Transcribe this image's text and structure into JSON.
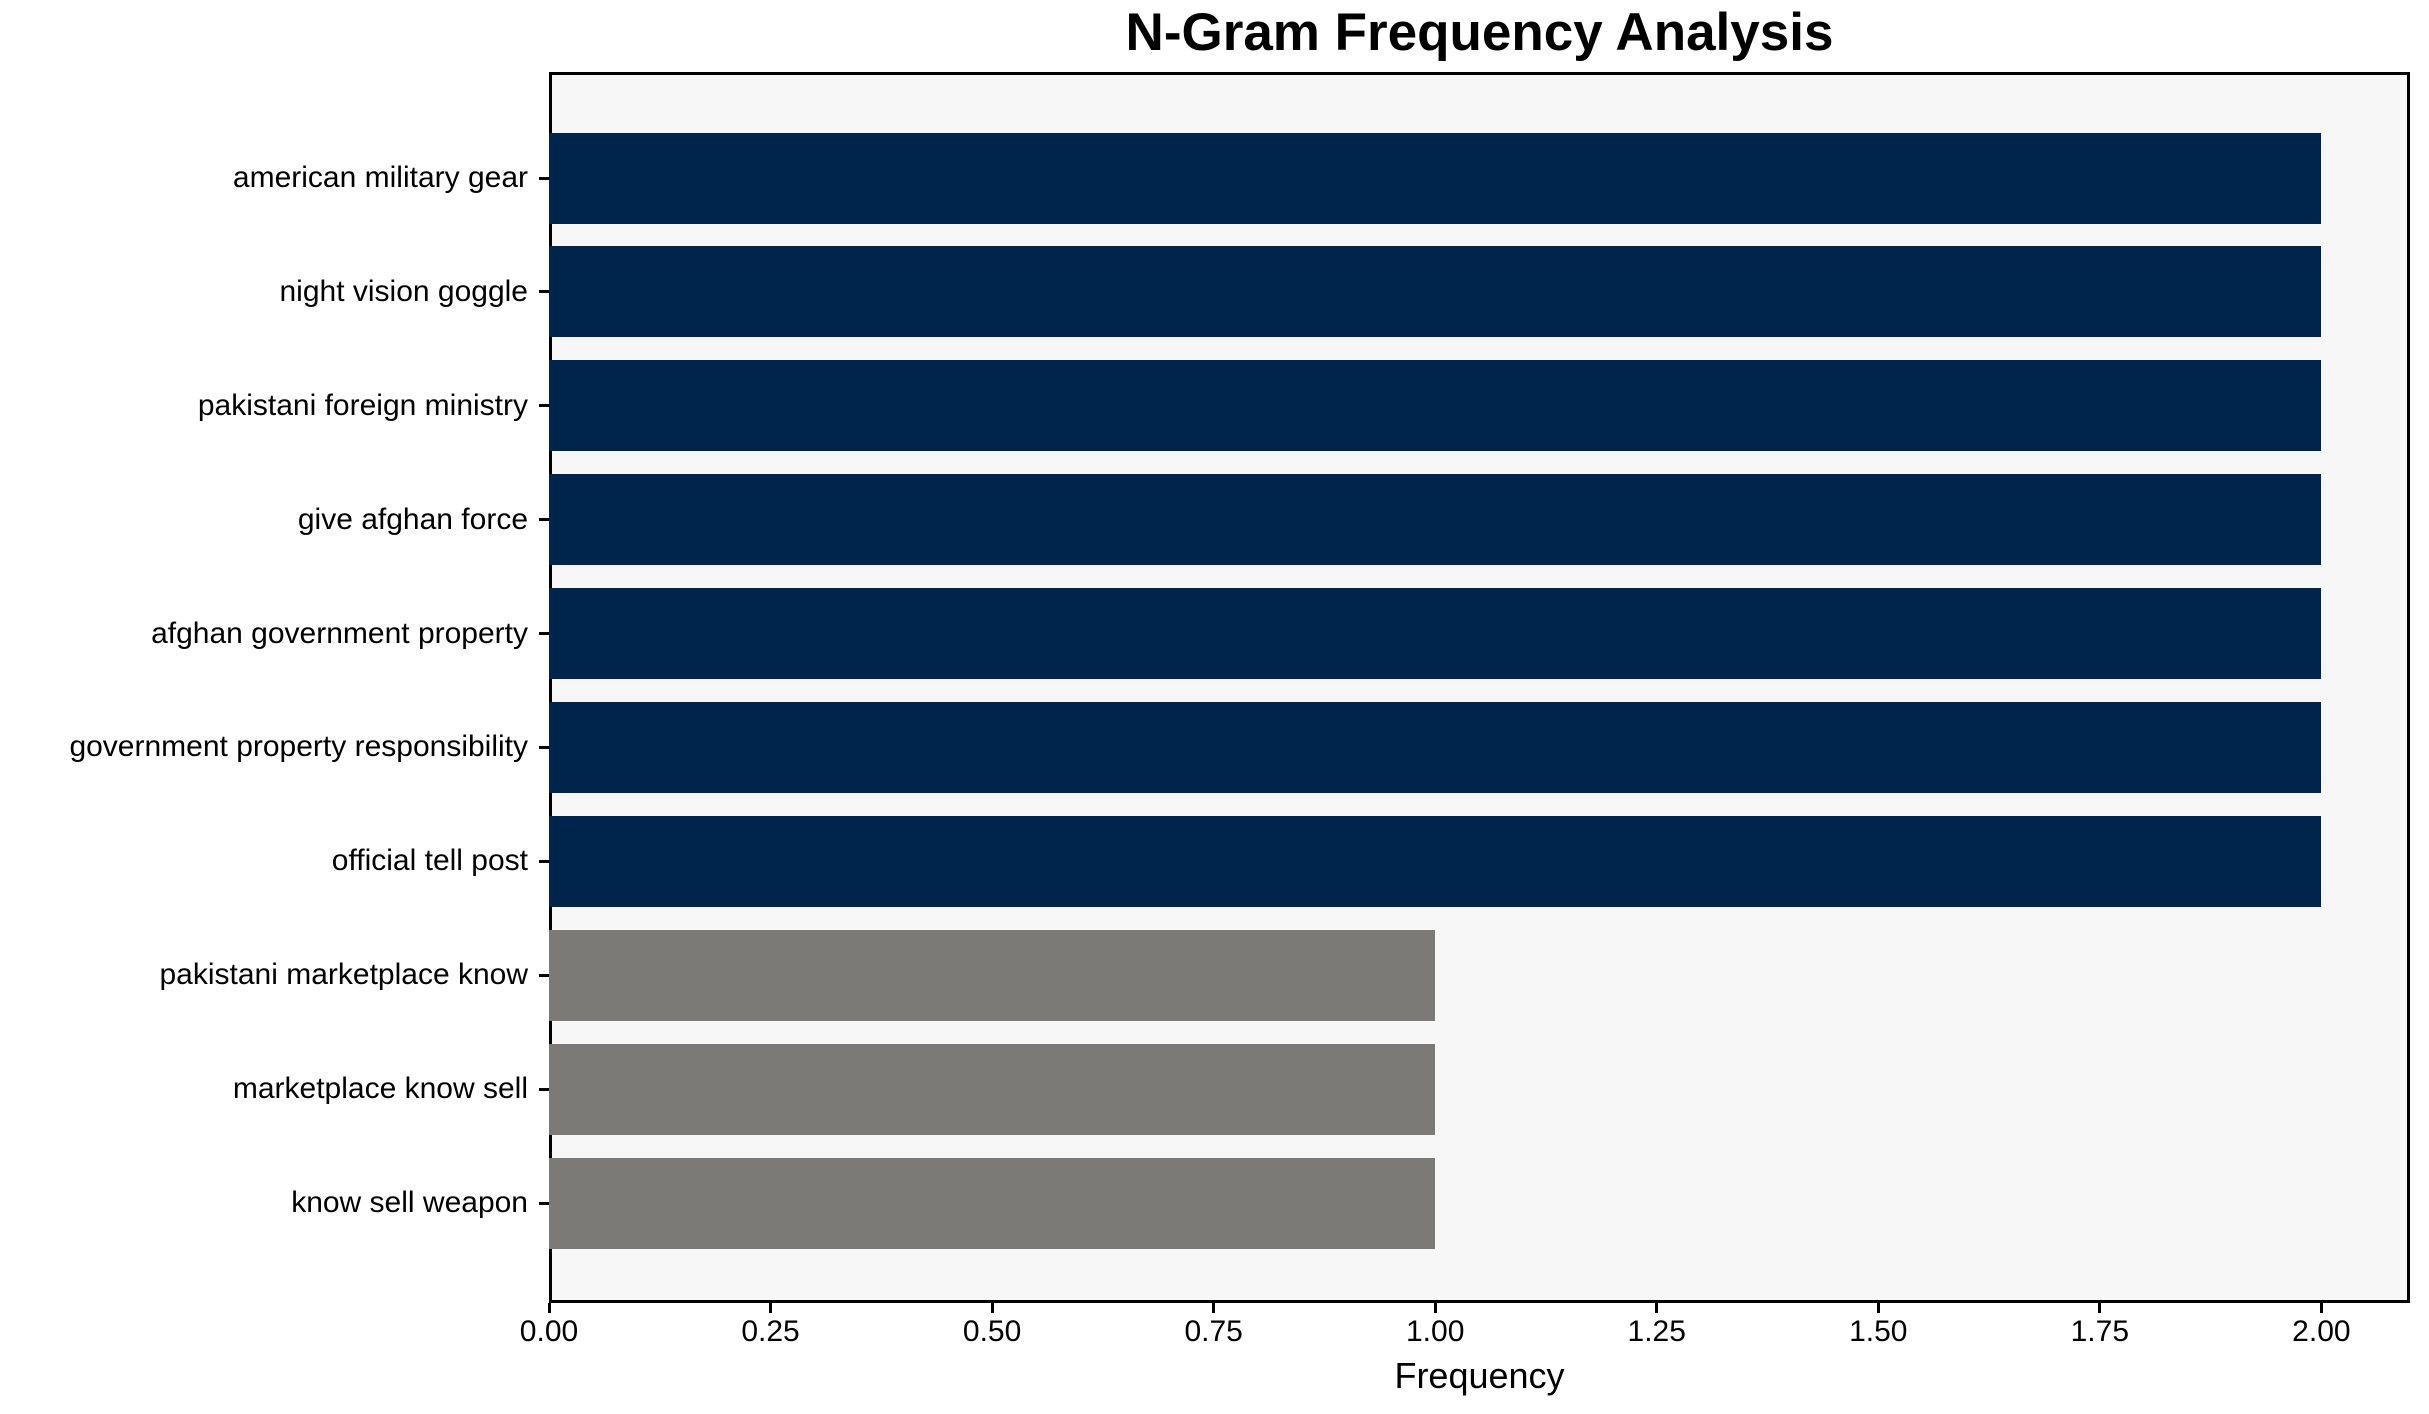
{
  "chart_data": {
    "type": "bar",
    "orientation": "horizontal",
    "title": "N-Gram Frequency Analysis",
    "xlabel": "Frequency",
    "ylabel": "",
    "categories": [
      "american military gear",
      "night vision goggle",
      "pakistani foreign ministry",
      "give afghan force",
      "afghan government property",
      "government property responsibility",
      "official tell post",
      "pakistani marketplace know",
      "marketplace know sell",
      "know sell weapon"
    ],
    "values": [
      2,
      2,
      2,
      2,
      2,
      2,
      2,
      1,
      1,
      1
    ],
    "bar_colors": [
      "#00254d",
      "#00254d",
      "#00254d",
      "#00254d",
      "#00254d",
      "#00254d",
      "#00254d",
      "#7b7a76",
      "#7b7a76",
      "#7b7a76"
    ],
    "xlim": [
      0,
      2.1
    ],
    "xticks": [
      0,
      0.25,
      0.5,
      0.75,
      1,
      1.25,
      1.5,
      1.75,
      2
    ],
    "xtick_labels": [
      "0.00",
      "0.25",
      "0.50",
      "0.75",
      "1.00",
      "1.25",
      "1.50",
      "1.75",
      "2.00"
    ],
    "grid": false,
    "legend_position": "none",
    "plot_background": "#f7f7f7",
    "figure_background": "#ffffff",
    "text_color": "#000000",
    "spine_color": "#000000"
  }
}
